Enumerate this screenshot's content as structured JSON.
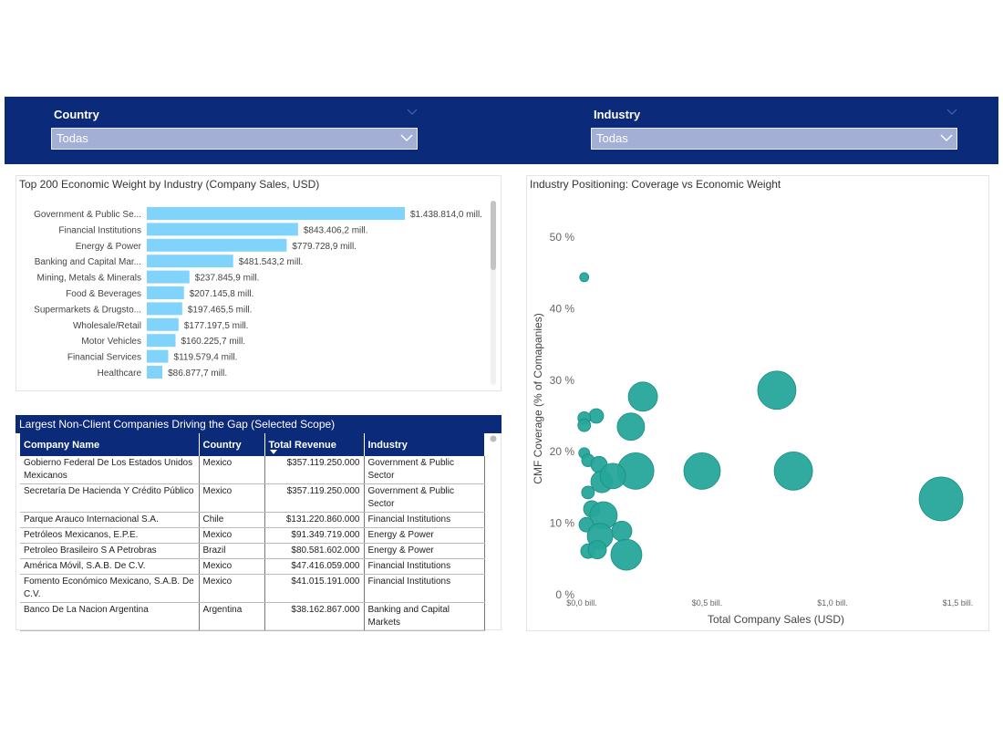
{
  "filters": [
    {
      "label": "Country",
      "value": "Todas"
    },
    {
      "label": "Industry",
      "value": "Todas"
    }
  ],
  "chart_data": [
    {
      "type": "bar",
      "orientation": "horizontal",
      "title": "Top 200 Economic Weight by Industry (Company Sales, USD)",
      "categories": [
        "Government & Public Se...",
        "Financial Institutions",
        "Energy & Power",
        "Banking and Capital Mar...",
        "Mining, Metals & Minerals",
        "Food & Beverages",
        "Supermarkets & Drugsto...",
        "Wholesale/Retail",
        "Motor Vehicles",
        "Financial Services",
        "Healthcare"
      ],
      "values": [
        1438814.0,
        843406.2,
        779728.9,
        481543.2,
        237845.9,
        207145.8,
        197465.5,
        177197.5,
        160225.7,
        119579.4,
        86877.7
      ],
      "value_labels": [
        "$1.438.814,0 mill.",
        "$843.406,2 mill.",
        "$779.728,9 mill.",
        "$481.543,2 mill.",
        "$237.845,9 mill.",
        "$207.145,8 mill.",
        "$197.465,5 mill.",
        "$177.197,5 mill.",
        "$160.225,7 mill.",
        "$119.579,4 mill.",
        "$86.877,7 mill."
      ],
      "color": "#80d4fb"
    },
    {
      "type": "scatter",
      "title": "Industry Positioning: Coverage vs Economic Weight",
      "xlabel": "Total Company Sales (USD)",
      "ylabel": "CMF Coverage (% of Comapanies)",
      "x": [
        0.01,
        0.244,
        0.778,
        0.196,
        0.058,
        0.01,
        0.01,
        0.01,
        0.025,
        0.069,
        0.215,
        0.48,
        0.844,
        1.433,
        0.08,
        0.124,
        0.025,
        0.04,
        0.087,
        0.018,
        0.16,
        0.073,
        0.025,
        0.062,
        0.178
      ],
      "values": [
        44.4,
        27.7,
        28.6,
        23.5,
        25.0,
        24.7,
        23.7,
        19.8,
        18.8,
        18.2,
        17.3,
        17.3,
        17.3,
        13.4,
        15.8,
        16.6,
        14.3,
        12.0,
        11.1,
        9.8,
        8.9,
        8.2,
        6.1,
        6.3,
        5.6
      ],
      "sizes": [
        5,
        16,
        21,
        15,
        8,
        7,
        7,
        6,
        7,
        9,
        20,
        20,
        21,
        24,
        12,
        14,
        7,
        9,
        15,
        8,
        11,
        14,
        8,
        10,
        17
      ],
      "color": "#26a69a",
      "xlim": [
        -0.02,
        1.6
      ],
      "ylim": [
        0,
        55
      ],
      "xticks": [
        {
          "value": 0,
          "label": "$0,0 bill."
        },
        {
          "value": 0.5,
          "label": "$0,5 bill."
        },
        {
          "value": 1.0,
          "label": "$1,0 bill."
        },
        {
          "value": 1.5,
          "label": "$1,5 bill."
        }
      ],
      "yticks": [
        {
          "value": 0,
          "label": "0 %"
        },
        {
          "value": 10,
          "label": "10 %"
        },
        {
          "value": 20,
          "label": "20 %"
        },
        {
          "value": 30,
          "label": "30 %"
        },
        {
          "value": 40,
          "label": "40 %"
        },
        {
          "value": 50,
          "label": "50 %"
        }
      ]
    }
  ],
  "table": {
    "title": "Largest Non-Client Companies Driving the Gap (Selected Scope)",
    "columns": [
      "Company Name",
      "Country",
      "Total Revenue",
      "Industry"
    ],
    "rows": [
      [
        "Gobierno Federal De Los Estados Unidos Mexicanos",
        "Mexico",
        "$357.119.250.000",
        "Government & Public Sector"
      ],
      [
        "Secretaría De Hacienda Y Crédito Público",
        "Mexico",
        "$357.119.250.000",
        "Government & Public Sector"
      ],
      [
        "Parque Arauco Internacional S.A.",
        "Chile",
        "$131.220.860.000",
        "Financial Institutions"
      ],
      [
        "Petróleos Mexicanos, E.P.E.",
        "Mexico",
        "$91.349.719.000",
        "Energy & Power"
      ],
      [
        "Petroleo Brasileiro S A Petrobras",
        "Brazil",
        "$80.581.602.000",
        "Energy & Power"
      ],
      [
        "América Móvil, S.A.B. De C.V.",
        "Mexico",
        "$47.416.059.000",
        "Financial Institutions"
      ],
      [
        "Fomento Económico Mexicano, S.A.B. De C.V.",
        "Mexico",
        "$41.015.191.000",
        "Financial Institutions"
      ],
      [
        "Banco De La Nacion Argentina",
        "Argentina",
        "$38.162.867.000",
        "Banking and Capital Markets"
      ]
    ]
  }
}
